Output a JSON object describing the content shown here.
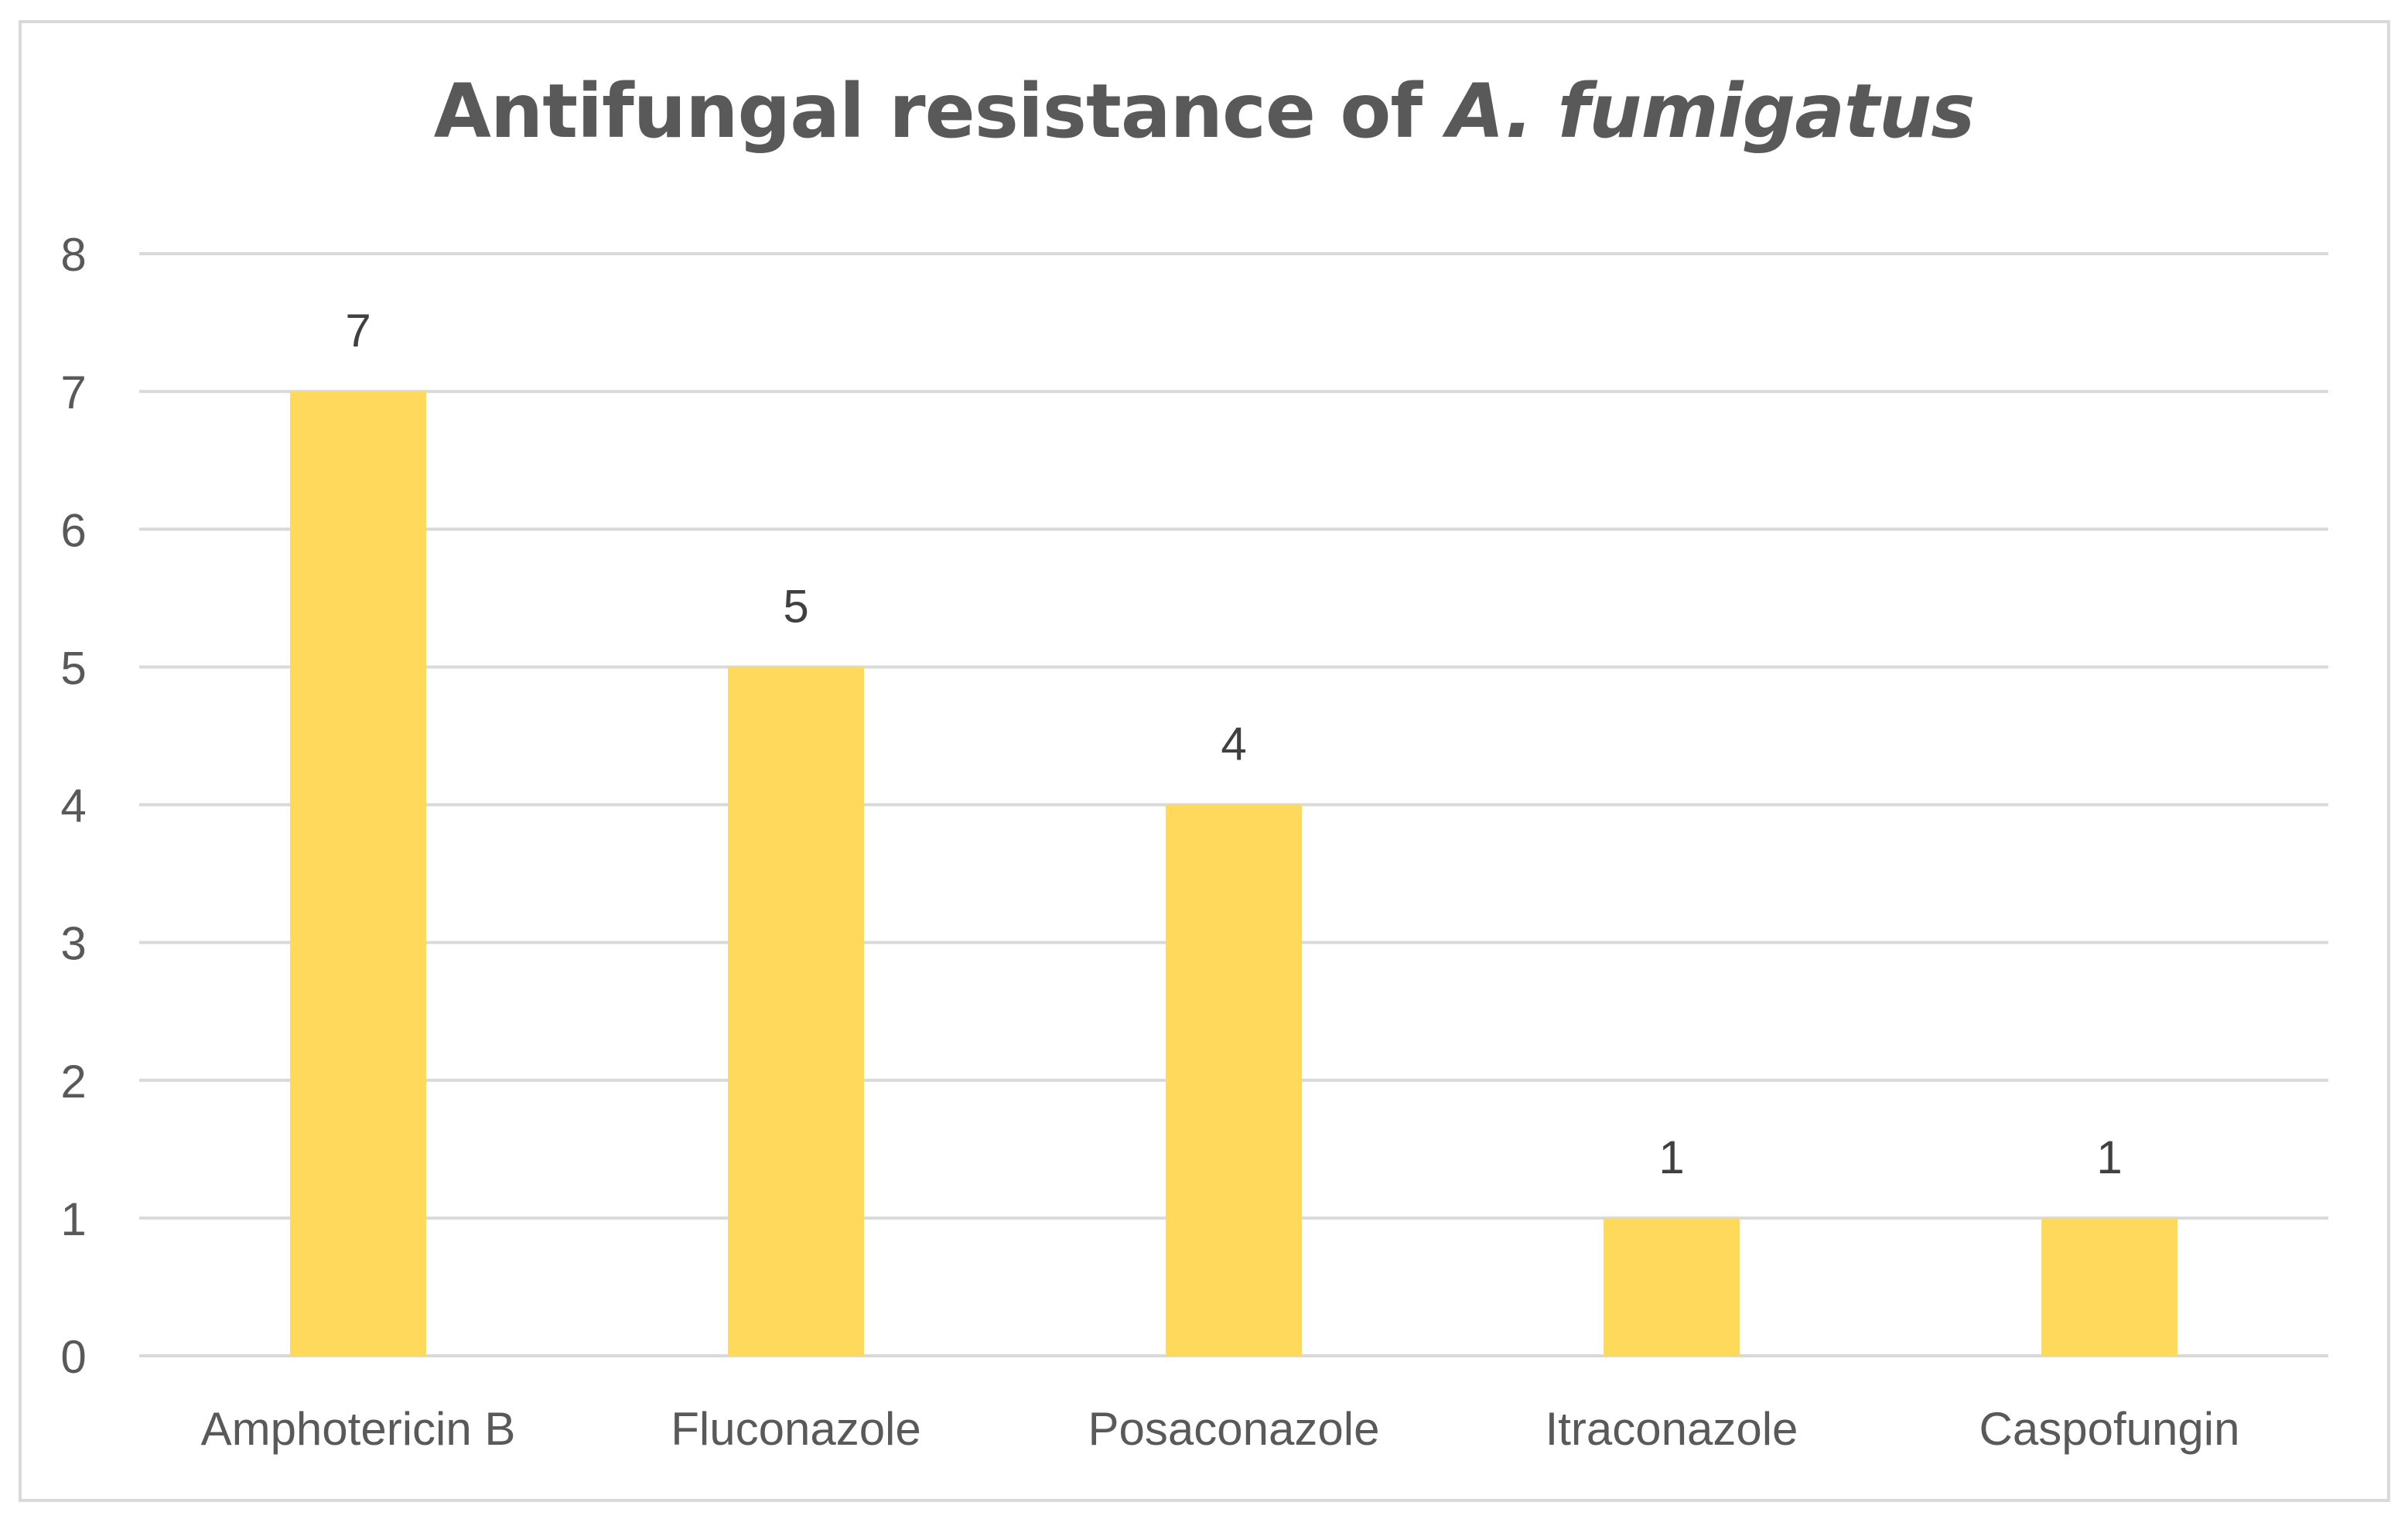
{
  "chart_data": {
    "type": "bar",
    "title": "Antifungal resistance of",
    "title_italic": "A. fumigatus",
    "categories": [
      "Amphotericin B",
      "Fluconazole",
      "Posaconazole",
      "Itraconazole",
      "Caspofungin"
    ],
    "values": [
      7,
      5,
      4,
      1,
      1
    ],
    "data_labels": [
      "7",
      "5",
      "4",
      "1",
      "1"
    ],
    "yticks": [
      "0",
      "1",
      "2",
      "3",
      "4",
      "5",
      "6",
      "7",
      "8"
    ],
    "ylim": [
      0,
      8
    ],
    "xlabel": "",
    "ylabel": "",
    "grid": true,
    "legend": "none",
    "bar_color": "#FFD95C",
    "grid_color": "#d9d9d9",
    "text_color": "#595959",
    "label_color": "#404040"
  }
}
